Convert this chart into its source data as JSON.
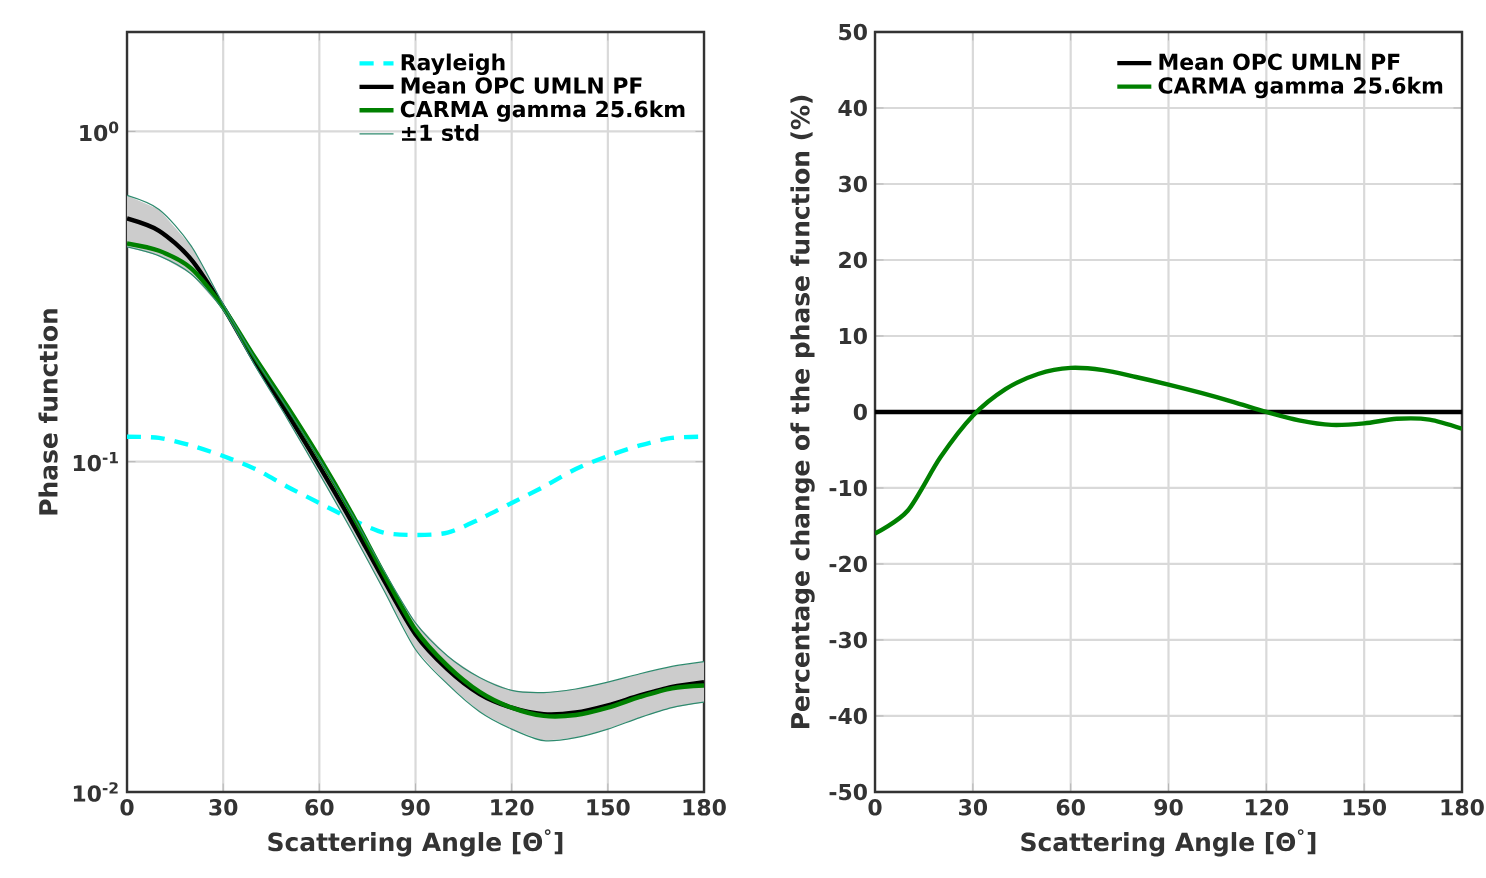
{
  "chart_data": [
    {
      "type": "line",
      "log": "y",
      "grid": true,
      "legend": "top right",
      "xlabel": "Scattering Angle [Θ$^{°}$]",
      "ylabel": "Phase function",
      "xlim": [
        0,
        180
      ],
      "xticks": [
        0,
        30,
        60,
        90,
        120,
        150,
        180
      ],
      "ylim": [
        0.01,
        2
      ],
      "yticks": [
        {
          "value": 0.01,
          "label": "10$^{-2}$"
        },
        {
          "value": 0.1,
          "label": "10$^{-1}$"
        },
        {
          "value": 1,
          "label": "10$^{0}$"
        }
      ],
      "series": [
        {
          "name": "Rayleigh",
          "type": "line",
          "line_style": "dashed",
          "color": "#00ffff",
          "x": [
            0,
            10,
            20,
            30,
            40,
            50,
            60,
            70,
            80,
            90,
            100,
            110,
            120,
            130,
            140,
            150,
            160,
            170,
            180
          ],
          "values": [
            0.119,
            0.118,
            0.112,
            0.104,
            0.095,
            0.084,
            0.075,
            0.067,
            0.061,
            0.06,
            0.061,
            0.067,
            0.075,
            0.084,
            0.095,
            0.104,
            0.112,
            0.118,
            0.119
          ]
        },
        {
          "name": "Mean OPC UMLN PF",
          "type": "line",
          "color": "#000000",
          "x": [
            0,
            10,
            20,
            30,
            40,
            50,
            60,
            70,
            80,
            90,
            100,
            110,
            120,
            130,
            140,
            150,
            160,
            170,
            180
          ],
          "values": [
            0.545,
            0.5,
            0.41,
            0.294,
            0.2,
            0.14,
            0.097,
            0.066,
            0.044,
            0.03,
            0.0235,
            0.0198,
            0.018,
            0.0172,
            0.0174,
            0.0183,
            0.0196,
            0.0208,
            0.0215
          ],
          "lower": [
            0.447,
            0.42,
            0.37,
            0.288,
            0.195,
            0.135,
            0.092,
            0.062,
            0.041,
            0.027,
            0.0212,
            0.0175,
            0.0155,
            0.0143,
            0.0146,
            0.0155,
            0.0168,
            0.018,
            0.0187
          ],
          "upper": [
            0.64,
            0.58,
            0.45,
            0.3,
            0.205,
            0.145,
            0.102,
            0.07,
            0.047,
            0.0325,
            0.0258,
            0.0222,
            0.0203,
            0.02,
            0.0205,
            0.0215,
            0.0228,
            0.024,
            0.0248
          ]
        },
        {
          "name": "CARMA gamma 25.6km",
          "type": "line",
          "color": "#008000",
          "x": [
            0,
            10,
            20,
            30,
            40,
            50,
            60,
            70,
            80,
            90,
            100,
            110,
            120,
            130,
            140,
            150,
            160,
            170,
            180
          ],
          "values": [
            0.458,
            0.435,
            0.385,
            0.293,
            0.206,
            0.147,
            0.103,
            0.07,
            0.046,
            0.031,
            0.0241,
            0.0201,
            0.018,
            0.017,
            0.0171,
            0.018,
            0.0194,
            0.0206,
            0.021
          ]
        },
        {
          "name": "±1 std",
          "type": "line",
          "color": "#2e8a6e",
          "x": [
            0,
            10,
            20,
            30,
            40,
            50,
            60,
            70,
            80,
            90,
            100,
            110,
            120,
            130,
            140,
            150,
            160,
            170,
            180
          ],
          "values": [
            0.64,
            0.58,
            0.45,
            0.3,
            0.205,
            0.145,
            0.102,
            0.07,
            0.047,
            0.0325,
            0.0258,
            0.0222,
            0.0203,
            0.02,
            0.0205,
            0.0215,
            0.0228,
            0.024,
            0.0248
          ]
        },
        {
          "type": "line",
          "color": "#2e8a6e",
          "x": [
            0,
            10,
            20,
            30,
            40,
            50,
            60,
            70,
            80,
            90,
            100,
            110,
            120,
            130,
            140,
            150,
            160,
            170,
            180
          ],
          "values": [
            0.447,
            0.42,
            0.37,
            0.288,
            0.195,
            0.135,
            0.092,
            0.062,
            0.041,
            0.027,
            0.0212,
            0.0175,
            0.0155,
            0.0143,
            0.0146,
            0.0155,
            0.0168,
            0.018,
            0.0187
          ]
        }
      ]
    },
    {
      "type": "line",
      "grid": true,
      "legend": "top right",
      "xlabel": "Scattering Angle [Θ$^{°}$]",
      "ylabel": "Percentage change of the phase function (%)",
      "xlim": [
        0,
        180
      ],
      "xticks": [
        0,
        30,
        60,
        90,
        120,
        150,
        180
      ],
      "ylim": [
        -50,
        50
      ],
      "yticks": [
        -50,
        -40,
        -30,
        -20,
        -10,
        0,
        10,
        20,
        30,
        40,
        50
      ],
      "series": [
        {
          "name": "Mean OPC UMLN PF",
          "color": "#000000",
          "x": [
            0,
            180
          ],
          "values": [
            0,
            0
          ]
        },
        {
          "name": "CARMA gamma 25.6km",
          "color": "#008000",
          "x": [
            0,
            10,
            20,
            30,
            40,
            50,
            60,
            70,
            80,
            90,
            100,
            110,
            120,
            130,
            140,
            150,
            160,
            170,
            180
          ],
          "values": [
            -16,
            -13,
            -6,
            -0.5,
            3,
            5,
            5.8,
            5.5,
            4.6,
            3.6,
            2.5,
            1.3,
            0,
            -1.1,
            -1.7,
            -1.5,
            -0.9,
            -1,
            -2.2
          ]
        }
      ]
    }
  ]
}
